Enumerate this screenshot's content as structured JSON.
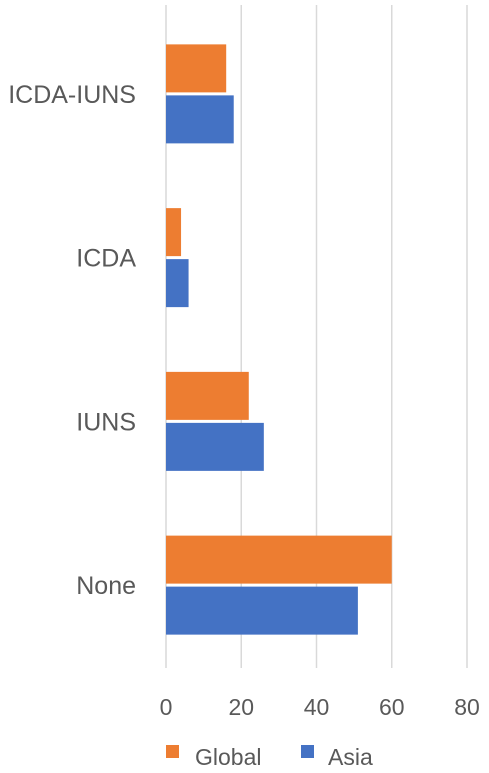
{
  "chart_data": {
    "type": "bar",
    "orientation": "horizontal",
    "categories": [
      "ICDA-IUNS",
      "ICDA",
      "IUNS",
      "None"
    ],
    "series": [
      {
        "name": "Global",
        "color": "#ED7D31",
        "values": [
          16,
          4,
          22,
          60
        ]
      },
      {
        "name": "Asia",
        "color": "#4472C4",
        "values": [
          18,
          6,
          26,
          51
        ]
      }
    ],
    "xlim": [
      0,
      80
    ],
    "xticks": [
      "0",
      "20",
      "40",
      "60",
      "80"
    ],
    "xtick_values": [
      0,
      20,
      40,
      60,
      80
    ],
    "grid": "vertical",
    "legend": "bottom"
  }
}
